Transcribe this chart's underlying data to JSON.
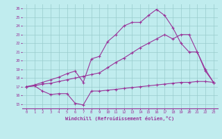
{
  "bg_color": "#c0ecee",
  "line_color": "#993399",
  "grid_color": "#99cccc",
  "xlabel": "Windchill (Refroidissement éolien,°C)",
  "xlabel_color": "#993399",
  "xtick_color": "#993399",
  "ytick_color": "#993399",
  "xlim": [
    -0.5,
    23.5
  ],
  "ylim": [
    14.5,
    26.5
  ],
  "yticks": [
    15,
    16,
    17,
    18,
    19,
    20,
    21,
    22,
    23,
    24,
    25,
    26
  ],
  "xticks": [
    0,
    1,
    2,
    3,
    4,
    5,
    6,
    7,
    8,
    9,
    10,
    11,
    12,
    13,
    14,
    15,
    16,
    17,
    18,
    19,
    20,
    21,
    22,
    23
  ],
  "series1_x": [
    0,
    1,
    2,
    3,
    4,
    5,
    6,
    7,
    8,
    9,
    10,
    11,
    12,
    13,
    14,
    15,
    16,
    17,
    18,
    19,
    20,
    21,
    22,
    23
  ],
  "series1_y": [
    17.0,
    17.1,
    16.5,
    16.1,
    16.2,
    16.2,
    15.1,
    14.9,
    16.5,
    16.5,
    16.6,
    16.7,
    16.8,
    16.9,
    17.0,
    17.1,
    17.2,
    17.3,
    17.4,
    17.5,
    17.5,
    17.6,
    17.6,
    17.5
  ],
  "series2_x": [
    0,
    1,
    2,
    3,
    4,
    5,
    6,
    7,
    8,
    9,
    10,
    11,
    12,
    13,
    14,
    15,
    16,
    17,
    18,
    19,
    20,
    21,
    22,
    23
  ],
  "series2_y": [
    17.0,
    17.1,
    17.3,
    17.4,
    17.6,
    17.8,
    18.0,
    18.2,
    18.4,
    18.6,
    19.2,
    19.8,
    20.3,
    20.9,
    21.5,
    22.0,
    22.5,
    23.0,
    22.5,
    23.0,
    23.0,
    21.0,
    18.8,
    17.5
  ],
  "series3_x": [
    0,
    1,
    2,
    3,
    4,
    5,
    6,
    7,
    8,
    9,
    10,
    11,
    12,
    13,
    14,
    15,
    16,
    17,
    18,
    19,
    20,
    21,
    22,
    23
  ],
  "series3_y": [
    17.0,
    17.2,
    17.5,
    17.8,
    18.1,
    18.5,
    18.8,
    17.5,
    20.2,
    20.5,
    22.2,
    23.0,
    24.0,
    24.4,
    24.4,
    25.2,
    25.9,
    25.2,
    23.8,
    22.0,
    21.0,
    21.0,
    19.0,
    17.5
  ]
}
